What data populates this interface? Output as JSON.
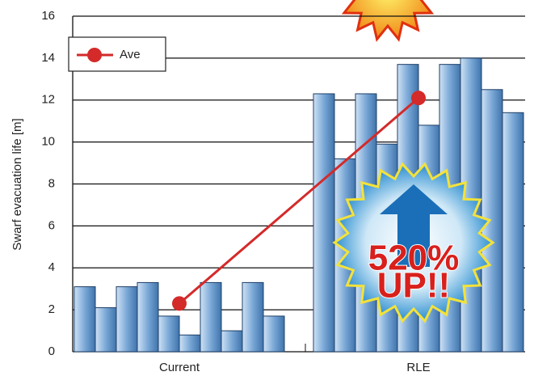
{
  "chart_data": {
    "type": "bar",
    "y_label": "Swarf evacuation life [m]",
    "categories": [
      "Current",
      "RLE"
    ],
    "bar_color": "#5b8fc4",
    "bar_values": [
      [
        3.1,
        2.1,
        3.1,
        3.3,
        1.7,
        0.8,
        3.3,
        1.0,
        3.3,
        1.7
      ],
      [
        12.3,
        9.2,
        12.3,
        9.9,
        13.7,
        10.8,
        13.7,
        14.0,
        12.5,
        11.4
      ]
    ],
    "series": [
      {
        "name": "Ave",
        "color": "#d42a2a",
        "values": [
          2.3,
          12.1
        ]
      }
    ],
    "annotation": [
      "520%",
      "UP!!"
    ],
    "ylim": [
      0,
      16
    ],
    "yticks": [
      0,
      2,
      4,
      6,
      8,
      10,
      12,
      14,
      16
    ],
    "grid": true,
    "legend": "upper left"
  }
}
